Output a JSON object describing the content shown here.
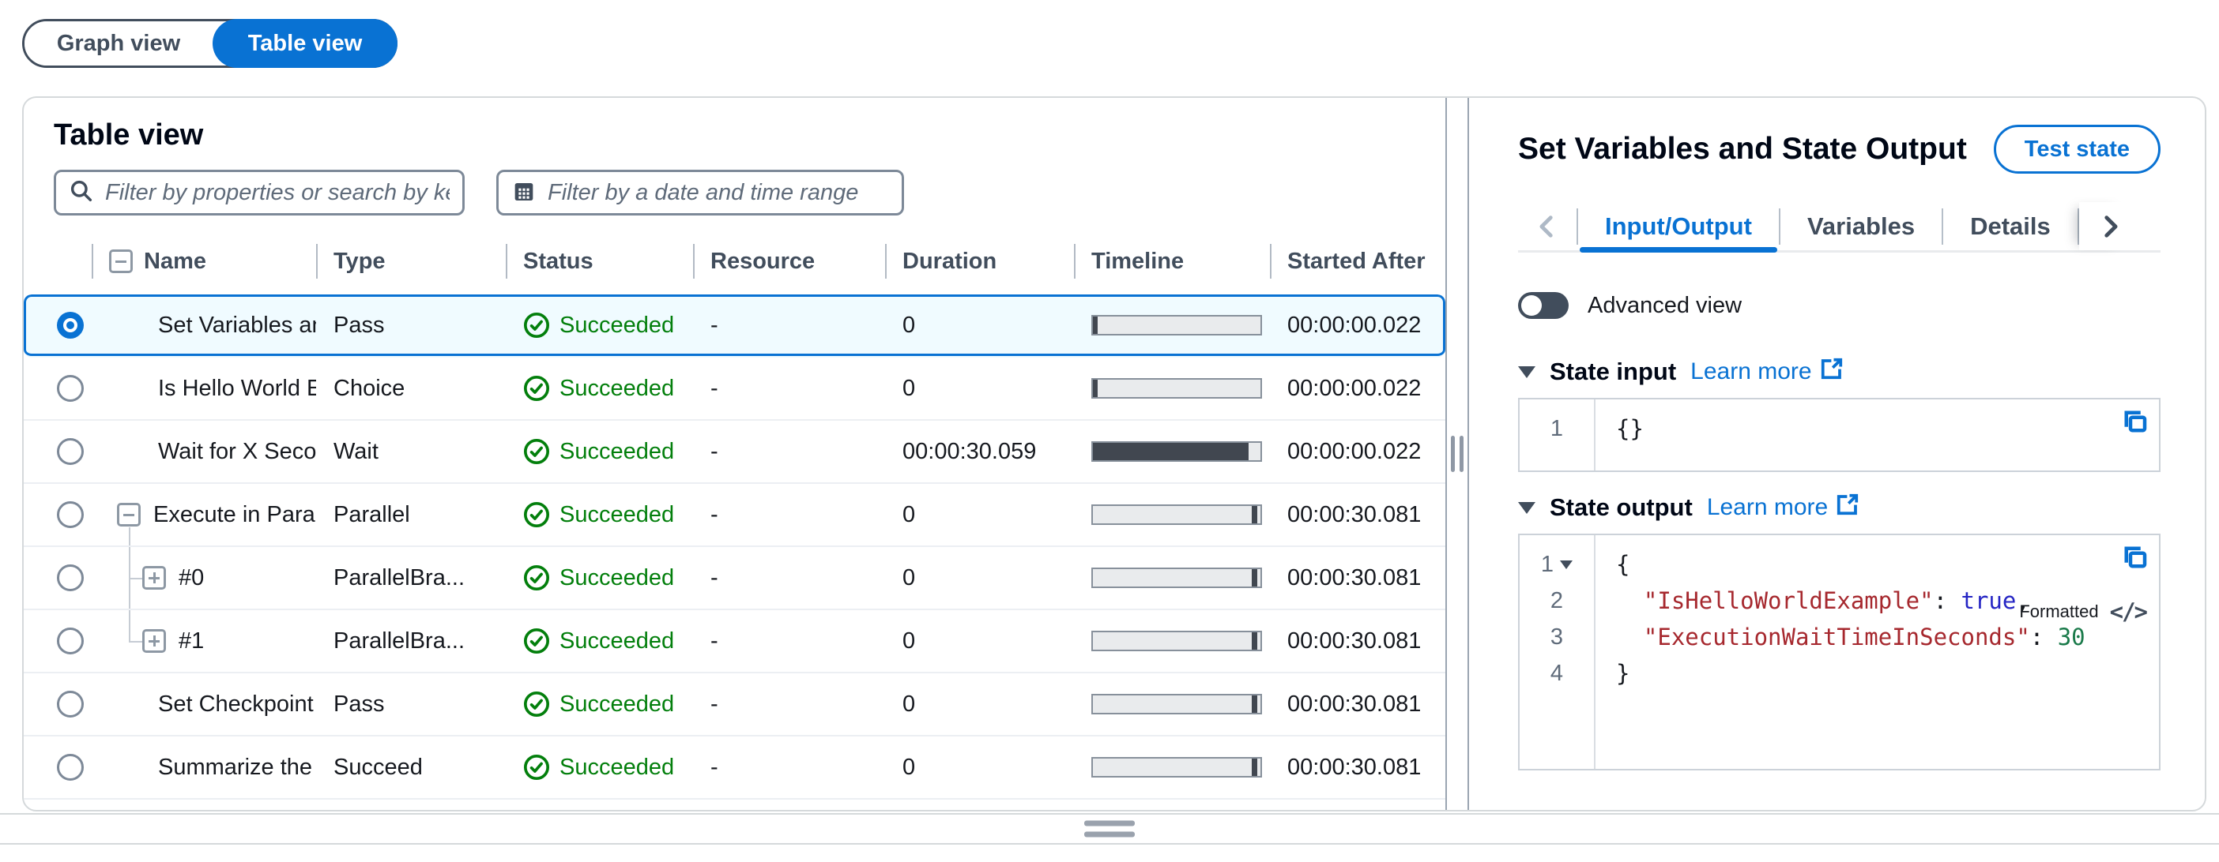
{
  "colors": {
    "accent": "#0972d3",
    "success": "#037f0c",
    "selected_row_bg": "#f0fbff",
    "timeline_fill": "#414750",
    "key": "#a6282e",
    "bool": "#2525c4",
    "num": "#1a7a4a",
    "plain": "#16191f"
  },
  "view_toggle": {
    "graph_label": "Graph view",
    "table_label": "Table view",
    "active": "Table view"
  },
  "table_panel": {
    "title": "Table view",
    "filters": {
      "properties_placeholder": "Filter by properties or search by ke",
      "date_placeholder": "Filter by a date and time range"
    },
    "columns": [
      "Name",
      "Type",
      "Status",
      "Resource",
      "Duration",
      "Timeline",
      "Started After"
    ],
    "rows": [
      {
        "name": "Set Variables an",
        "type": "Pass",
        "status": "Succeeded",
        "resource": "-",
        "duration": "0",
        "started_after": "00:00:00.022",
        "selected": true,
        "tree": null,
        "timeline": {
          "left_pct": 0,
          "width_pct": 3
        }
      },
      {
        "name": "Is Hello World E",
        "type": "Choice",
        "status": "Succeeded",
        "resource": "-",
        "duration": "0",
        "started_after": "00:00:00.022",
        "selected": false,
        "tree": null,
        "timeline": {
          "left_pct": 0,
          "width_pct": 3
        }
      },
      {
        "name": "Wait for X Secon",
        "type": "Wait",
        "status": "Succeeded",
        "resource": "-",
        "duration": "00:00:30.059",
        "started_after": "00:00:00.022",
        "selected": false,
        "tree": null,
        "timeline": {
          "left_pct": 0,
          "width_pct": 93
        }
      },
      {
        "name": "Execute in Paral",
        "type": "Parallel",
        "status": "Succeeded",
        "resource": "-",
        "duration": "0",
        "started_after": "00:00:30.081",
        "selected": false,
        "tree": "parent",
        "timeline": {
          "left_pct": 95,
          "width_pct": 3
        }
      },
      {
        "name": "#0",
        "type": "ParallelBra...",
        "status": "Succeeded",
        "resource": "-",
        "duration": "0",
        "started_after": "00:00:30.081",
        "selected": false,
        "tree": "child-first",
        "timeline": {
          "left_pct": 95,
          "width_pct": 3
        }
      },
      {
        "name": "#1",
        "type": "ParallelBra...",
        "status": "Succeeded",
        "resource": "-",
        "duration": "0",
        "started_after": "00:00:30.081",
        "selected": false,
        "tree": "child-last",
        "timeline": {
          "left_pct": 95,
          "width_pct": 3
        }
      },
      {
        "name": "Set Checkpoint",
        "type": "Pass",
        "status": "Succeeded",
        "resource": "-",
        "duration": "0",
        "started_after": "00:00:30.081",
        "selected": false,
        "tree": null,
        "timeline": {
          "left_pct": 95,
          "width_pct": 3
        }
      },
      {
        "name": "Summarize the",
        "type": "Succeed",
        "status": "Succeeded",
        "resource": "-",
        "duration": "0",
        "started_after": "00:00:30.081",
        "selected": false,
        "tree": null,
        "timeline": {
          "left_pct": 95,
          "width_pct": 3
        }
      }
    ]
  },
  "detail_panel": {
    "title": "Set Variables and State Output",
    "test_state_label": "Test state",
    "tabs": [
      {
        "label": "Input/Output",
        "active": true
      },
      {
        "label": "Variables",
        "active": false
      },
      {
        "label": "Details",
        "active": false
      }
    ],
    "advanced_view_label": "Advanced view",
    "state_input": {
      "heading": "State input",
      "learn_more_label": "Learn more",
      "lines": [
        {
          "num": "1",
          "fold": false,
          "tokens": [
            {
              "text": "{}",
              "color": "plain"
            }
          ]
        }
      ]
    },
    "state_output": {
      "heading": "State output",
      "learn_more_label": "Learn more",
      "formatted_label": "Formatted",
      "lines": [
        {
          "num": "1",
          "fold": true,
          "tokens": [
            {
              "text": "{",
              "color": "plain"
            }
          ]
        },
        {
          "num": "2",
          "fold": false,
          "tokens": [
            {
              "text": "  ",
              "color": "plain"
            },
            {
              "text": "\"IsHelloWorldExample\"",
              "color": "key"
            },
            {
              "text": ": ",
              "color": "plain"
            },
            {
              "text": "true",
              "color": "bool"
            },
            {
              "text": ",",
              "color": "plain"
            }
          ]
        },
        {
          "num": "3",
          "fold": false,
          "tokens": [
            {
              "text": "  ",
              "color": "plain"
            },
            {
              "text": "\"ExecutionWaitTimeInSeconds\"",
              "color": "key"
            },
            {
              "text": ": ",
              "color": "plain"
            },
            {
              "text": "30",
              "color": "num"
            }
          ]
        },
        {
          "num": "4",
          "fold": false,
          "tokens": [
            {
              "text": "}",
              "color": "plain"
            }
          ]
        }
      ]
    }
  }
}
